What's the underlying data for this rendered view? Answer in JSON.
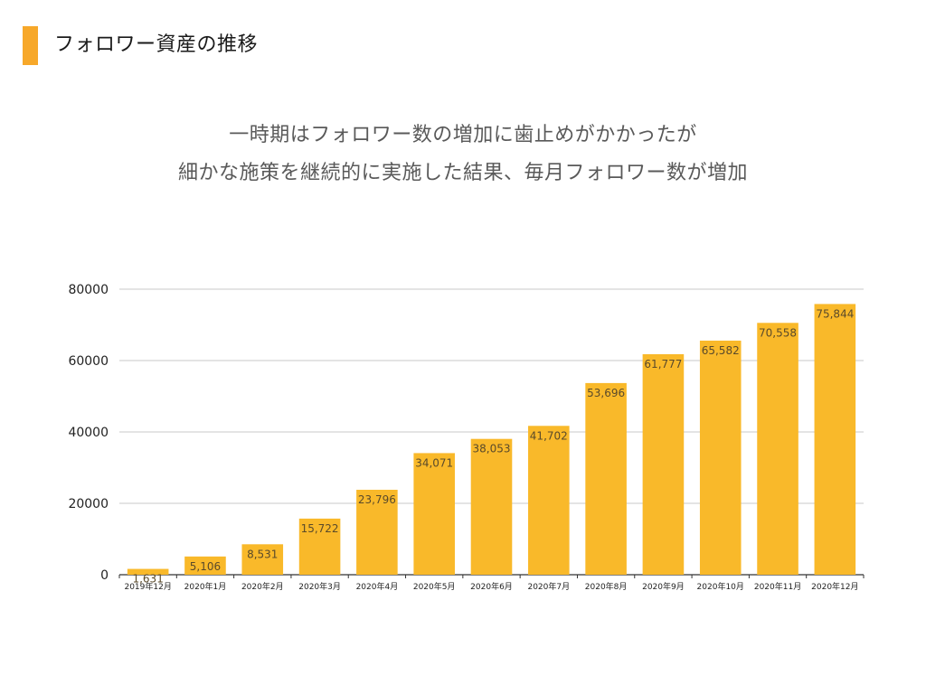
{
  "slide": {
    "title": "フォロワー資産の推移",
    "subtitle_line1": "一時期はフォロワー数の増加に歯止めがかかったが",
    "subtitle_line2": "細かな施策を継続的に実施した結果、毎月フォロワー数が増加"
  },
  "colors": {
    "accent": "#F7A82A",
    "bar": "#F9B92A",
    "bar_label": "#5a4a2a",
    "grid": "#C8C8C8",
    "axis": "#333333",
    "text_muted": "#595959"
  },
  "chart_data": {
    "type": "bar",
    "categories": [
      "2019年12月",
      "2020年1月",
      "2020年2月",
      "2020年3月",
      "2020年4月",
      "2020年5月",
      "2020年6月",
      "2020年7月",
      "2020年8月",
      "2020年9月",
      "2020年10月",
      "2020年11月",
      "2020年12月"
    ],
    "values": [
      1631,
      5106,
      8531,
      15722,
      23796,
      34071,
      38053,
      41702,
      53696,
      61777,
      65582,
      70558,
      75844
    ],
    "value_labels": [
      "1,631",
      "5,106",
      "8,531",
      "15,722",
      "23,796",
      "34,071",
      "38,053",
      "41,702",
      "53,696",
      "61,777",
      "65,582",
      "70,558",
      "75,844"
    ],
    "y_ticks": [
      "0",
      "20000",
      "40000",
      "60000",
      "80000"
    ],
    "ylim": [
      0,
      80000
    ],
    "grid": true,
    "legend": "none",
    "title": "",
    "xlabel": "",
    "ylabel": ""
  }
}
